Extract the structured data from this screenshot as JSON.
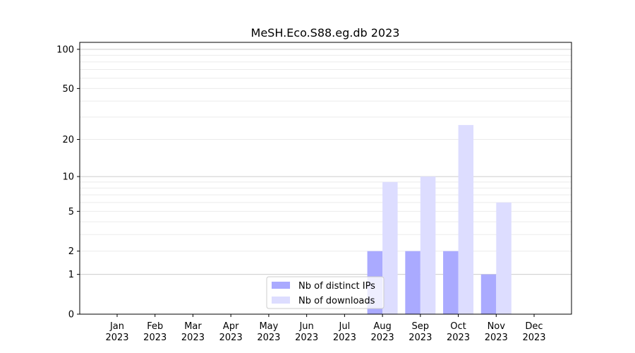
{
  "chart_data": {
    "type": "bar",
    "title": "MeSH.Eco.S88.eg.db 2023",
    "xlabel": "",
    "ylabel": "",
    "y_scale": "log(1+y)",
    "ylim": [
      0,
      113
    ],
    "y_ticks": [
      0,
      1,
      2,
      5,
      10,
      20,
      50,
      100
    ],
    "grid": true,
    "legend_position": "bottom-center",
    "categories": [
      [
        "Jan",
        "2023"
      ],
      [
        "Feb",
        "2023"
      ],
      [
        "Mar",
        "2023"
      ],
      [
        "Apr",
        "2023"
      ],
      [
        "May",
        "2023"
      ],
      [
        "Jun",
        "2023"
      ],
      [
        "Jul",
        "2023"
      ],
      [
        "Aug",
        "2023"
      ],
      [
        "Sep",
        "2023"
      ],
      [
        "Oct",
        "2023"
      ],
      [
        "Nov",
        "2023"
      ],
      [
        "Dec",
        "2023"
      ]
    ],
    "series": [
      {
        "name": "Nb of distinct IPs",
        "color": "#aaaaff",
        "values": [
          0,
          0,
          0,
          0,
          0,
          0,
          0,
          2,
          2,
          2,
          1,
          0
        ]
      },
      {
        "name": "Nb of downloads",
        "color": "#ddddff",
        "values": [
          0,
          0,
          0,
          0,
          0,
          0,
          0,
          9,
          10,
          26,
          6,
          0
        ]
      }
    ]
  }
}
